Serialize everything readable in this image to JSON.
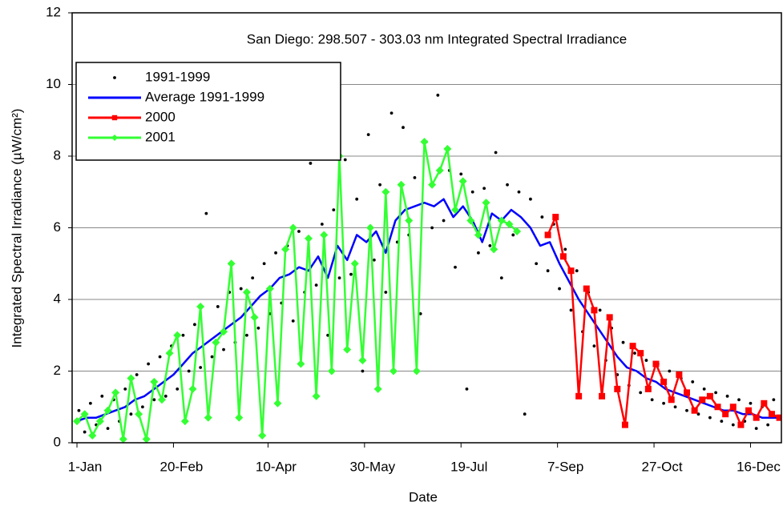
{
  "chart_data": {
    "type": "line",
    "title": "San Diego: 298.507 - 303.03 nm Integrated Spectral Irradiance",
    "x_label": "Date",
    "y_label": "Integrated Spectral Irradiance (µW/cm²)",
    "xlim": [
      -1.5,
      366
    ],
    "ylim": [
      0,
      12
    ],
    "xticks": [
      {
        "value": 1,
        "label": "1-Jan"
      },
      {
        "value": 51,
        "label": "20-Feb"
      },
      {
        "value": 100,
        "label": "10-Apr"
      },
      {
        "value": 150,
        "label": "30-May"
      },
      {
        "value": 200,
        "label": "19-Jul"
      },
      {
        "value": 250,
        "label": "7-Sep"
      },
      {
        "value": 300,
        "label": "27-Oct"
      },
      {
        "value": 350,
        "label": "16-Dec"
      }
    ],
    "yticks": [
      0,
      2,
      4,
      6,
      8,
      10,
      12
    ],
    "grid": true,
    "legend": "upper left",
    "series": [
      {
        "name": "1991-1999",
        "color": "#000000",
        "marker": "dot",
        "line": false,
        "x": [
          2,
          5,
          8,
          11,
          14,
          17,
          20,
          23,
          26,
          29,
          32,
          35,
          38,
          41,
          44,
          47,
          50,
          53,
          56,
          59,
          62,
          65,
          68,
          71,
          74,
          77,
          80,
          83,
          86,
          89,
          92,
          95,
          98,
          101,
          104,
          107,
          110,
          113,
          116,
          119,
          122,
          125,
          128,
          131,
          134,
          137,
          140,
          143,
          146,
          149,
          152,
          155,
          158,
          161,
          164,
          167,
          170,
          173,
          176,
          179,
          182,
          185,
          188,
          191,
          194,
          197,
          200,
          203,
          206,
          209,
          212,
          215,
          218,
          221,
          224,
          227,
          230,
          233,
          236,
          239,
          242,
          245,
          248,
          251,
          254,
          257,
          260,
          263,
          266,
          269,
          272,
          275,
          278,
          281,
          284,
          287,
          290,
          293,
          296,
          299,
          302,
          305,
          308,
          311,
          314,
          317,
          320,
          323,
          326,
          329,
          332,
          335,
          338,
          341,
          344,
          347,
          350,
          353,
          356,
          359,
          362
        ],
        "values": [
          0.9,
          0.3,
          1.1,
          0.5,
          1.3,
          0.4,
          1.2,
          0.6,
          1.5,
          0.8,
          1.9,
          1.0,
          2.2,
          1.2,
          2.4,
          1.3,
          2.7,
          1.5,
          3.0,
          2.0,
          3.3,
          2.1,
          6.4,
          2.4,
          3.8,
          2.6,
          4.2,
          2.8,
          4.3,
          3.0,
          4.6,
          3.2,
          5.0,
          3.6,
          5.3,
          3.9,
          5.5,
          3.4,
          5.9,
          4.2,
          7.8,
          4.4,
          6.1,
          3.0,
          6.5,
          4.6,
          7.9,
          4.7,
          6.8,
          2.0,
          8.6,
          5.1,
          7.2,
          4.2,
          9.2,
          5.6,
          8.8,
          5.8,
          7.4,
          3.6,
          8.4,
          6.0,
          9.7,
          6.2,
          7.6,
          4.9,
          7.5,
          1.5,
          7.0,
          5.3,
          7.1,
          5.5,
          8.1,
          4.6,
          7.2,
          5.8,
          7.0,
          0.8,
          6.8,
          5.0,
          6.3,
          4.8,
          6.1,
          4.3,
          5.4,
          3.7,
          4.8,
          3.1,
          4.2,
          2.7,
          3.7,
          2.3,
          3.2,
          1.9,
          2.8,
          1.6,
          2.5,
          1.4,
          2.3,
          1.2,
          2.2,
          1.1,
          2.0,
          1.0,
          1.8,
          0.9,
          1.7,
          0.8,
          1.5,
          0.7,
          1.4,
          0.6,
          1.3,
          0.5,
          1.2,
          0.6,
          1.1,
          0.4,
          1.0,
          0.5,
          1.2
        ]
      },
      {
        "name": "Average 1991-1999",
        "color": "#0000ff",
        "marker": "none",
        "line": true,
        "x": [
          1,
          6,
          11,
          16,
          21,
          26,
          31,
          36,
          41,
          46,
          51,
          56,
          61,
          66,
          71,
          76,
          81,
          86,
          91,
          96,
          101,
          106,
          111,
          116,
          121,
          126,
          131,
          136,
          141,
          146,
          151,
          156,
          161,
          166,
          171,
          176,
          181,
          186,
          191,
          196,
          201,
          206,
          211,
          216,
          221,
          226,
          231,
          236,
          241,
          246,
          251,
          256,
          261,
          266,
          271,
          276,
          281,
          286,
          291,
          296,
          301,
          306,
          311,
          316,
          321,
          326,
          331,
          336,
          341,
          346,
          351,
          356,
          361,
          365
        ],
        "values": [
          0.6,
          0.7,
          0.7,
          0.8,
          0.9,
          1.0,
          1.2,
          1.3,
          1.5,
          1.7,
          1.9,
          2.2,
          2.5,
          2.7,
          2.9,
          3.1,
          3.3,
          3.5,
          3.8,
          4.1,
          4.3,
          4.6,
          4.7,
          4.9,
          4.8,
          5.2,
          4.6,
          5.5,
          5.1,
          5.8,
          5.6,
          5.9,
          5.3,
          6.2,
          6.5,
          6.6,
          6.7,
          6.6,
          6.8,
          6.3,
          6.6,
          6.2,
          5.6,
          6.4,
          6.2,
          6.5,
          6.3,
          6.0,
          5.5,
          5.6,
          5.0,
          4.5,
          4.0,
          3.6,
          3.2,
          2.8,
          2.4,
          2.1,
          2.0,
          1.8,
          1.7,
          1.5,
          1.4,
          1.3,
          1.2,
          1.1,
          1.0,
          0.9,
          0.9,
          0.8,
          0.8,
          0.7,
          0.7,
          0.7
        ]
      },
      {
        "name": "2000",
        "color": "#ff0000",
        "marker": "square",
        "line": true,
        "x": [
          245,
          249,
          253,
          257,
          261,
          265,
          269,
          273,
          277,
          281,
          285,
          289,
          293,
          297,
          301,
          305,
          309,
          313,
          317,
          321,
          325,
          329,
          333,
          337,
          341,
          345,
          349,
          353,
          357,
          361,
          365
        ],
        "values": [
          5.8,
          6.3,
          5.2,
          4.8,
          1.3,
          4.3,
          3.7,
          1.3,
          3.5,
          1.5,
          0.5,
          2.7,
          2.5,
          1.5,
          2.2,
          1.7,
          1.2,
          1.9,
          1.4,
          0.9,
          1.2,
          1.3,
          1.0,
          0.8,
          1.0,
          0.5,
          0.9,
          0.7,
          1.1,
          0.8,
          0.7
        ]
      },
      {
        "name": "2001",
        "color": "#33ff33",
        "marker": "diamond",
        "line": true,
        "x": [
          1,
          5,
          9,
          13,
          17,
          21,
          25,
          29,
          33,
          37,
          41,
          45,
          49,
          53,
          57,
          61,
          65,
          69,
          73,
          77,
          81,
          85,
          89,
          93,
          97,
          101,
          105,
          109,
          113,
          117,
          121,
          125,
          129,
          133,
          137,
          141,
          145,
          149,
          153,
          157,
          161,
          165,
          169,
          173,
          177,
          181,
          185,
          189,
          193,
          197,
          201,
          205,
          209,
          213,
          217,
          221,
          225,
          229
        ],
        "values": [
          0.6,
          0.8,
          0.2,
          0.6,
          0.9,
          1.4,
          0.1,
          1.8,
          0.8,
          0.1,
          1.7,
          1.2,
          2.5,
          3.0,
          0.6,
          1.5,
          3.8,
          0.7,
          2.8,
          3.1,
          5.0,
          0.7,
          4.2,
          3.5,
          0.2,
          4.3,
          1.1,
          5.4,
          6.0,
          2.2,
          5.7,
          1.3,
          5.8,
          2.0,
          8.0,
          2.6,
          5.0,
          2.3,
          6.0,
          1.5,
          7.0,
          2.0,
          7.2,
          6.2,
          2.0,
          8.4,
          7.2,
          7.6,
          8.2,
          6.5,
          7.3,
          6.2,
          5.8,
          6.7,
          5.4,
          6.2,
          6.1,
          5.9
        ]
      }
    ]
  }
}
